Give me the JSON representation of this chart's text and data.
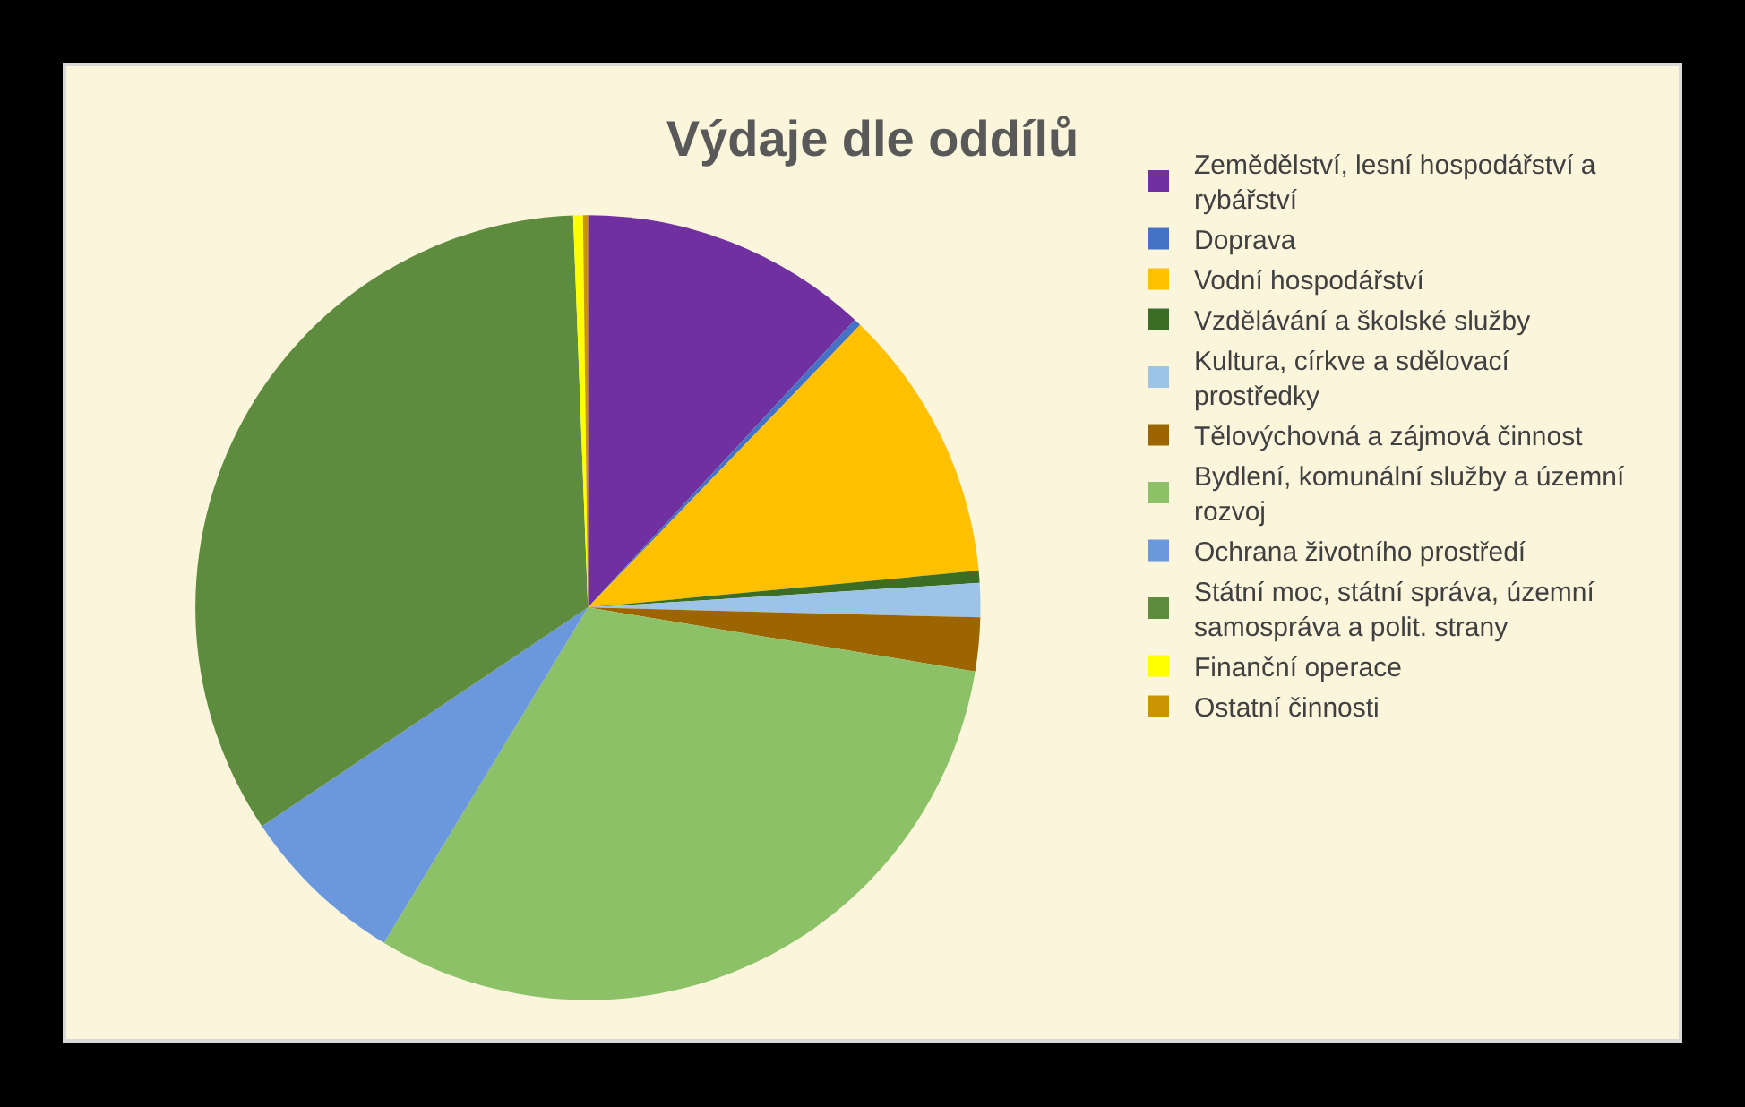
{
  "chart_data": {
    "type": "pie",
    "title": "Výdaje dle oddílů",
    "categories": [
      "Zemědělství, lesní hospodářství a rybářství",
      "Doprava",
      "Vodní hospodářství",
      "Vzdělávání a školské služby",
      "Kultura, církve a sdělovací prostředky",
      "Tělovýchovná a zájmová činnost",
      "Bydlení, komunální služby a územní rozvoj",
      "Ochrana životního prostředí",
      "Státní moc, státní správa, územní samospráva a polit. strany",
      "Finanční operace",
      "Ostatní činnosti"
    ],
    "values": [
      11.9,
      0.3,
      11.3,
      0.5,
      1.4,
      2.2,
      31.1,
      6.9,
      33.8,
      0.4,
      0.2
    ],
    "colors": [
      "#7030a0",
      "#4472c4",
      "#ffc000",
      "#3b6e24",
      "#9dc3e6",
      "#9c6500",
      "#8cc168",
      "#6b97dd",
      "#5e8c3f",
      "#ffff00",
      "#c99400"
    ],
    "legend": "right"
  }
}
